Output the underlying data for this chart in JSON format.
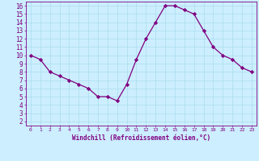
{
  "x": [
    0,
    1,
    2,
    3,
    4,
    5,
    6,
    7,
    8,
    9,
    10,
    11,
    12,
    13,
    14,
    15,
    16,
    17,
    18,
    19,
    20,
    21,
    22,
    23
  ],
  "y": [
    10,
    9.5,
    8,
    7.5,
    7,
    6.5,
    6,
    5,
    5,
    4.5,
    6.5,
    9.5,
    12,
    14,
    16,
    16,
    15.5,
    15,
    13,
    11,
    10,
    9.5,
    8.5,
    8
  ],
  "line_color": "#800080",
  "marker": "D",
  "marker_size": 2.2,
  "bg_color": "#cceeff",
  "grid_color": "#aaddee",
  "xlabel": "Windchill (Refroidissement éolien,°C)",
  "xlim": [
    -0.5,
    23.5
  ],
  "ylim": [
    1.5,
    16.5
  ],
  "yticks": [
    2,
    3,
    4,
    5,
    6,
    7,
    8,
    9,
    10,
    11,
    12,
    13,
    14,
    15,
    16
  ],
  "xticks": [
    0,
    1,
    2,
    3,
    4,
    5,
    6,
    7,
    8,
    9,
    10,
    11,
    12,
    13,
    14,
    15,
    16,
    17,
    18,
    19,
    20,
    21,
    22,
    23
  ],
  "tick_color": "#800080",
  "label_color": "#800080",
  "axis_color": "#800080"
}
